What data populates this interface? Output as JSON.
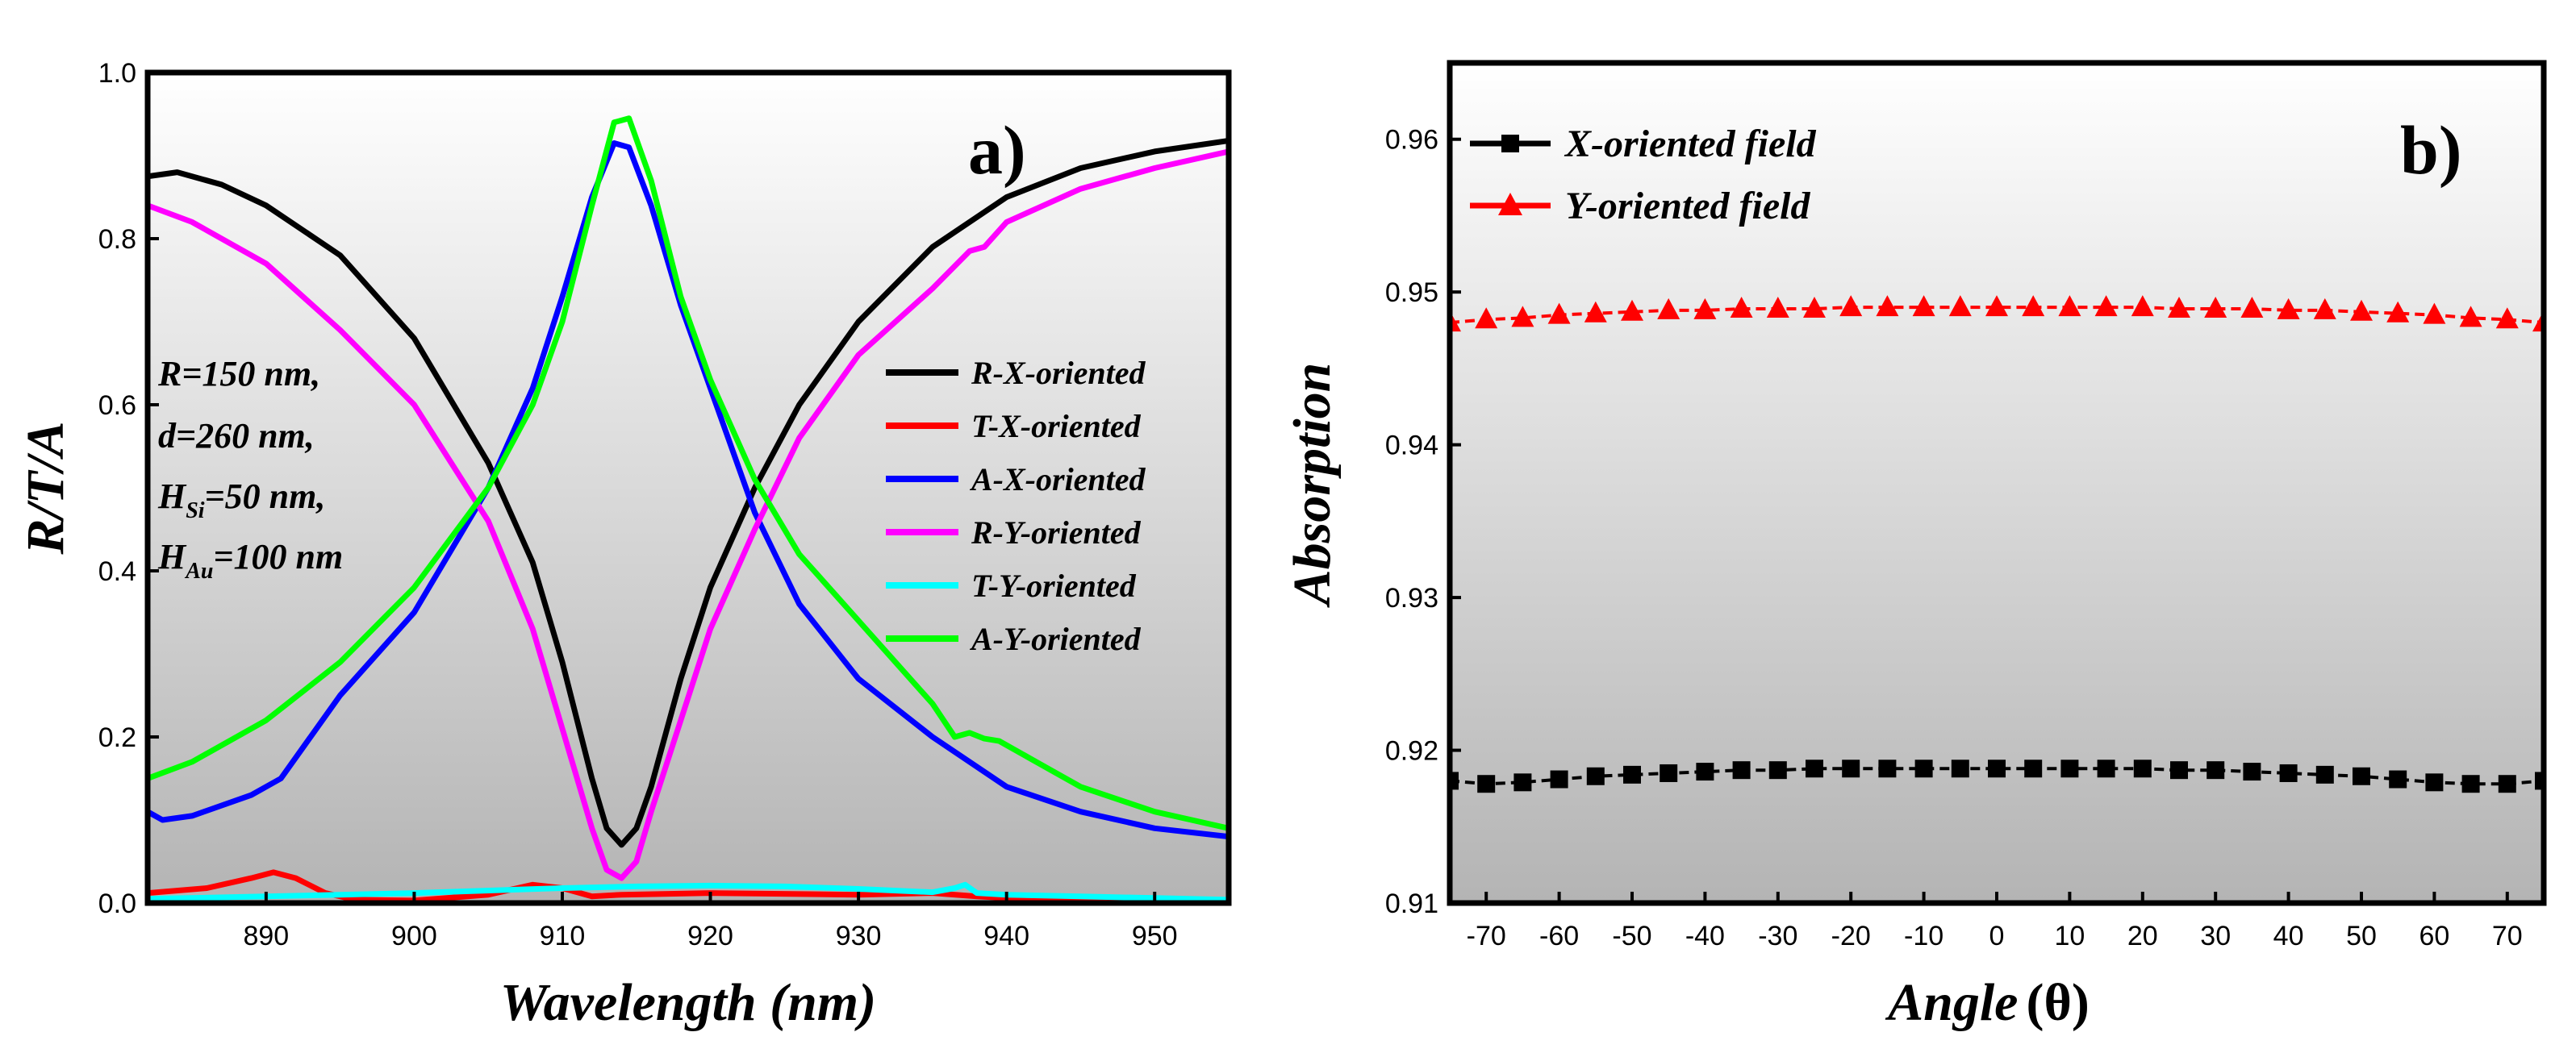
{
  "chart_data": [
    {
      "type": "line",
      "panel_label": "a)",
      "xlabel": "Wavelength (nm)",
      "ylabel": "R/T/A",
      "xlim": [
        882,
        955
      ],
      "ylim": [
        0,
        1.0
      ],
      "xticks": [
        890,
        900,
        910,
        920,
        930,
        940,
        950
      ],
      "yticks": [
        0.0,
        0.2,
        0.4,
        0.6,
        0.8,
        1.0
      ],
      "ytick_labels": [
        "0.0",
        "0.2",
        "0.4",
        "0.6",
        "0.8",
        "1.0"
      ],
      "params": {
        "line1": "R=150 nm,",
        "line2": "d=260 nm,",
        "line3_main": "H",
        "line3_sub": "Si",
        "line3_rest": "=50 nm,",
        "line4_main": "H",
        "line4_sub": "Au",
        "line4_rest": "=100 nm"
      },
      "series": [
        {
          "name": "R-X-oriented",
          "color": "#000000",
          "x": [
            882,
            884,
            887,
            890,
            895,
            900,
            905,
            908,
            910,
            912,
            913,
            914,
            915,
            916,
            918,
            920,
            923,
            926,
            930,
            935,
            940,
            945,
            950,
            955
          ],
          "y": [
            0.875,
            0.88,
            0.865,
            0.84,
            0.78,
            0.68,
            0.53,
            0.41,
            0.29,
            0.15,
            0.09,
            0.07,
            0.09,
            0.14,
            0.27,
            0.38,
            0.5,
            0.6,
            0.7,
            0.79,
            0.85,
            0.885,
            0.905,
            0.918
          ]
        },
        {
          "name": "T-X-oriented",
          "color": "#ff0000",
          "x": [
            882,
            886,
            889,
            890.5,
            892,
            894,
            896,
            900,
            905,
            908,
            910,
            912,
            914,
            920,
            930,
            935,
            938,
            940,
            950,
            955
          ],
          "y": [
            0.012,
            0.018,
            0.03,
            0.037,
            0.03,
            0.012,
            0.004,
            0.003,
            0.01,
            0.022,
            0.018,
            0.008,
            0.01,
            0.012,
            0.01,
            0.012,
            0.008,
            0.006,
            0.003,
            0.002
          ]
        },
        {
          "name": "A-X-oriented",
          "color": "#0000ff",
          "x": [
            882,
            883,
            885,
            889,
            891,
            895,
            900,
            905,
            908,
            910,
            912,
            913.5,
            914.5,
            916,
            918,
            920,
            923,
            926,
            930,
            935,
            940,
            945,
            950,
            955
          ],
          "y": [
            0.11,
            0.1,
            0.105,
            0.13,
            0.15,
            0.25,
            0.35,
            0.5,
            0.62,
            0.73,
            0.85,
            0.915,
            0.91,
            0.84,
            0.72,
            0.62,
            0.47,
            0.36,
            0.27,
            0.2,
            0.14,
            0.11,
            0.09,
            0.08
          ]
        },
        {
          "name": "R-Y-oriented",
          "color": "#ff00ff",
          "x": [
            882,
            885,
            890,
            895,
            900,
            905,
            908,
            910,
            912,
            913,
            914,
            915,
            916,
            918,
            920,
            923,
            926,
            930,
            935,
            937.5,
            938.5,
            940,
            945,
            950,
            955
          ],
          "y": [
            0.84,
            0.82,
            0.77,
            0.69,
            0.6,
            0.46,
            0.33,
            0.21,
            0.09,
            0.04,
            0.03,
            0.05,
            0.11,
            0.22,
            0.33,
            0.45,
            0.56,
            0.66,
            0.74,
            0.785,
            0.79,
            0.82,
            0.86,
            0.885,
            0.905
          ]
        },
        {
          "name": "T-Y-oriented",
          "color": "#00ffff",
          "x": [
            882,
            890,
            900,
            910,
            915,
            920,
            925,
            930,
            935,
            936.5,
            937.2,
            938,
            940,
            945,
            950,
            955
          ],
          "y": [
            0.005,
            0.008,
            0.012,
            0.018,
            0.02,
            0.021,
            0.02,
            0.017,
            0.013,
            0.018,
            0.022,
            0.012,
            0.01,
            0.008,
            0.006,
            0.004
          ]
        },
        {
          "name": "A-Y-oriented",
          "color": "#00ff00",
          "x": [
            882,
            885,
            890,
            895,
            900,
            905,
            908,
            910,
            912,
            913.5,
            914.5,
            916,
            918,
            920,
            923,
            926,
            930,
            935,
            936.5,
            937.5,
            938.5,
            939.5,
            942,
            945,
            950,
            955
          ],
          "y": [
            0.15,
            0.17,
            0.22,
            0.29,
            0.38,
            0.5,
            0.6,
            0.7,
            0.84,
            0.94,
            0.945,
            0.87,
            0.73,
            0.63,
            0.51,
            0.42,
            0.34,
            0.24,
            0.2,
            0.205,
            0.198,
            0.195,
            0.17,
            0.14,
            0.11,
            0.09
          ]
        }
      ]
    },
    {
      "type": "line",
      "panel_label": "b)",
      "xlabel_main": "Angle",
      "xlabel_theta": "(θ)",
      "ylabel": "Absorption",
      "xlim": [
        -75,
        75
      ],
      "ylim": [
        0.91,
        0.965
      ],
      "xticks": [
        -70,
        -60,
        -50,
        -40,
        -30,
        -20,
        -10,
        0,
        10,
        20,
        30,
        40,
        50,
        60,
        70
      ],
      "yticks": [
        0.91,
        0.92,
        0.93,
        0.94,
        0.95,
        0.96
      ],
      "ytick_labels": [
        "0.91",
        "0.92",
        "0.93",
        "0.94",
        "0.95",
        "0.96"
      ],
      "series": [
        {
          "name": "X-oriented field",
          "color": "#000000",
          "marker": "square",
          "x": [
            -75,
            -70,
            -65,
            -60,
            -55,
            -50,
            -45,
            -40,
            -35,
            -30,
            -25,
            -20,
            -15,
            -10,
            -5,
            0,
            5,
            10,
            15,
            20,
            25,
            30,
            35,
            40,
            45,
            50,
            55,
            60,
            65,
            70,
            75
          ],
          "y": [
            0.918,
            0.9178,
            0.9179,
            0.9181,
            0.9183,
            0.9184,
            0.9185,
            0.9186,
            0.9187,
            0.9187,
            0.9188,
            0.9188,
            0.9188,
            0.9188,
            0.9188,
            0.9188,
            0.9188,
            0.9188,
            0.9188,
            0.9188,
            0.9187,
            0.9187,
            0.9186,
            0.9185,
            0.9184,
            0.9183,
            0.9181,
            0.9179,
            0.9178,
            0.9178,
            0.918
          ]
        },
        {
          "name": "Y-oriented field",
          "color": "#ff0000",
          "marker": "triangle",
          "x": [
            -75,
            -70,
            -65,
            -60,
            -55,
            -50,
            -45,
            -40,
            -35,
            -30,
            -25,
            -20,
            -15,
            -10,
            -5,
            0,
            5,
            10,
            15,
            20,
            25,
            30,
            35,
            40,
            45,
            50,
            55,
            60,
            65,
            70,
            75
          ],
          "y": [
            0.948,
            0.9482,
            0.9483,
            0.9485,
            0.9486,
            0.9487,
            0.9488,
            0.9488,
            0.9489,
            0.9489,
            0.9489,
            0.949,
            0.949,
            0.949,
            0.949,
            0.949,
            0.949,
            0.949,
            0.949,
            0.949,
            0.9489,
            0.9489,
            0.9489,
            0.9488,
            0.9488,
            0.9487,
            0.9486,
            0.9485,
            0.9483,
            0.9482,
            0.948
          ]
        }
      ]
    }
  ]
}
